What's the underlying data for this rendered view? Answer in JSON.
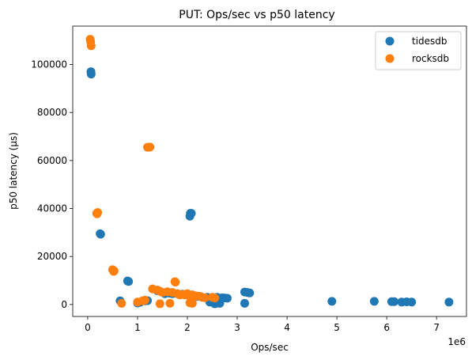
{
  "chart_data": {
    "type": "scatter",
    "title": "PUT: Ops/sec vs p50 latency",
    "xlabel": "Ops/sec",
    "ylabel": "p50 latency (μs)",
    "x_offset_label": "1e6",
    "xlim": [
      -300000,
      7600000
    ],
    "ylim": [
      -5000,
      116000
    ],
    "xticks": [
      0,
      1000000,
      2000000,
      3000000,
      4000000,
      5000000,
      6000000,
      7000000
    ],
    "xtick_labels": [
      "0",
      "1",
      "2",
      "3",
      "4",
      "5",
      "6",
      "7"
    ],
    "yticks": [
      0,
      20000,
      40000,
      60000,
      80000,
      100000
    ],
    "ytick_labels": [
      "0",
      "20000",
      "40000",
      "60000",
      "80000",
      "100000"
    ],
    "legend_placement": "top-right",
    "grid": false,
    "series": [
      {
        "name": "tidesdb",
        "color": "#1f77b4",
        "points": [
          [
            65000,
            97000
          ],
          [
            70000,
            96000
          ],
          [
            250000,
            29500
          ],
          [
            260000,
            29300
          ],
          [
            650000,
            1500
          ],
          [
            800000,
            9800
          ],
          [
            820000,
            9600
          ],
          [
            1000000,
            600
          ],
          [
            1050000,
            900
          ],
          [
            1150000,
            1500
          ],
          [
            1200000,
            1600
          ],
          [
            1400000,
            5700
          ],
          [
            1550000,
            4500
          ],
          [
            1650000,
            4700
          ],
          [
            1700000,
            4500
          ],
          [
            1800000,
            4500
          ],
          [
            1900000,
            4300
          ],
          [
            2000000,
            4000
          ],
          [
            2050000,
            36800
          ],
          [
            2060000,
            38000
          ],
          [
            2080000,
            38000
          ],
          [
            2100000,
            4000
          ],
          [
            2150000,
            3500
          ],
          [
            2200000,
            3300
          ],
          [
            2300000,
            3000
          ],
          [
            2400000,
            3000
          ],
          [
            2450000,
            1000
          ],
          [
            2500000,
            1200
          ],
          [
            2550000,
            300
          ],
          [
            2600000,
            3000
          ],
          [
            2650000,
            500
          ],
          [
            2700000,
            2800
          ],
          [
            2750000,
            2700
          ],
          [
            2800000,
            2600
          ],
          [
            3150000,
            5200
          ],
          [
            3200000,
            5000
          ],
          [
            3250000,
            4800
          ],
          [
            3150000,
            500
          ],
          [
            4900000,
            1300
          ],
          [
            5750000,
            1300
          ],
          [
            6100000,
            1200
          ],
          [
            6150000,
            1200
          ],
          [
            6300000,
            1000
          ],
          [
            6400000,
            1100
          ],
          [
            6500000,
            1000
          ],
          [
            7250000,
            1000
          ]
        ]
      },
      {
        "name": "rocksdb",
        "color": "#ff7f0e",
        "points": [
          [
            50000,
            110500
          ],
          [
            60000,
            109500
          ],
          [
            70000,
            107800
          ],
          [
            180000,
            38000
          ],
          [
            190000,
            37800
          ],
          [
            200000,
            38300
          ],
          [
            500000,
            14500
          ],
          [
            520000,
            13800
          ],
          [
            530000,
            14000
          ],
          [
            680000,
            500
          ],
          [
            1000000,
            1000
          ],
          [
            1100000,
            1500
          ],
          [
            1150000,
            1800
          ],
          [
            1200000,
            65500
          ],
          [
            1230000,
            65500
          ],
          [
            1250000,
            65600
          ],
          [
            1300000,
            6500
          ],
          [
            1400000,
            6000
          ],
          [
            1450000,
            5500
          ],
          [
            1450000,
            300
          ],
          [
            1500000,
            5000
          ],
          [
            1600000,
            5300
          ],
          [
            1650000,
            500
          ],
          [
            1700000,
            5000
          ],
          [
            1750000,
            9500
          ],
          [
            1760000,
            9300
          ],
          [
            1800000,
            4500
          ],
          [
            1850000,
            4000
          ],
          [
            1900000,
            4200
          ],
          [
            1950000,
            4000
          ],
          [
            2000000,
            4500
          ],
          [
            2050000,
            3500
          ],
          [
            2100000,
            4000
          ],
          [
            2150000,
            3600
          ],
          [
            2200000,
            3500
          ],
          [
            2250000,
            3400
          ],
          [
            2300000,
            3000
          ],
          [
            2350000,
            2800
          ],
          [
            2100000,
            500
          ],
          [
            2050000,
            700
          ],
          [
            2500000,
            3000
          ],
          [
            2550000,
            2700
          ]
        ]
      }
    ]
  }
}
